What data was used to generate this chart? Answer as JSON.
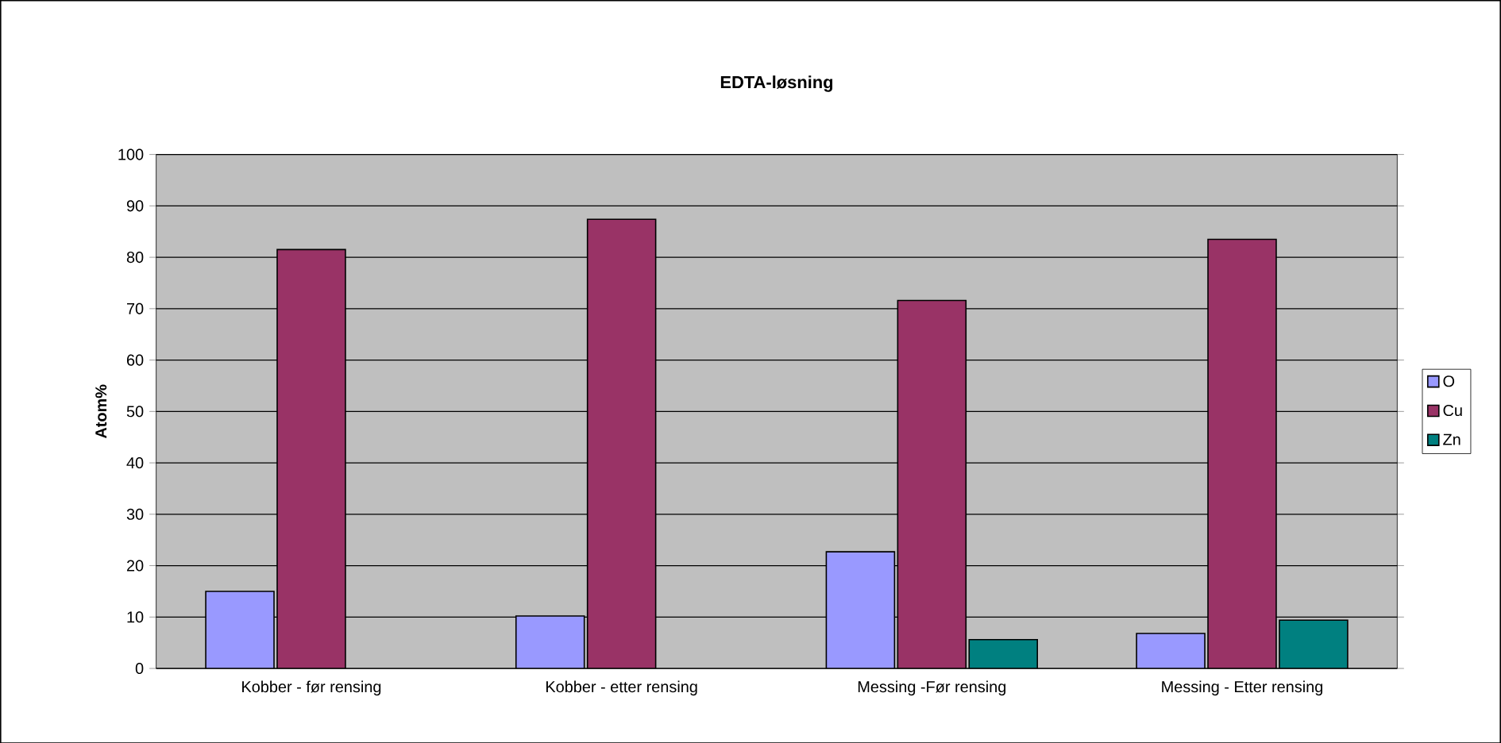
{
  "chart_data": {
    "type": "bar",
    "title": "EDTA-løsning",
    "ylabel": "Atom%",
    "categories": [
      "Kobber - før rensing",
      "Kobber - etter rensing",
      "Messing -Før rensing",
      "Messing - Etter rensing"
    ],
    "series": [
      {
        "name": "O",
        "color": "#9999ff",
        "values": [
          15.0,
          10.2,
          22.7,
          6.8
        ]
      },
      {
        "name": "Cu",
        "color": "#993366",
        "values": [
          81.5,
          87.4,
          71.6,
          83.5
        ]
      },
      {
        "name": "Zn",
        "color": "#008080",
        "values": [
          null,
          null,
          5.6,
          9.4
        ]
      }
    ],
    "ylim": [
      0,
      100
    ],
    "yticks": [
      0,
      10,
      20,
      30,
      40,
      50,
      60,
      70,
      80,
      90,
      100
    ],
    "grid": "y",
    "legend": "right"
  }
}
